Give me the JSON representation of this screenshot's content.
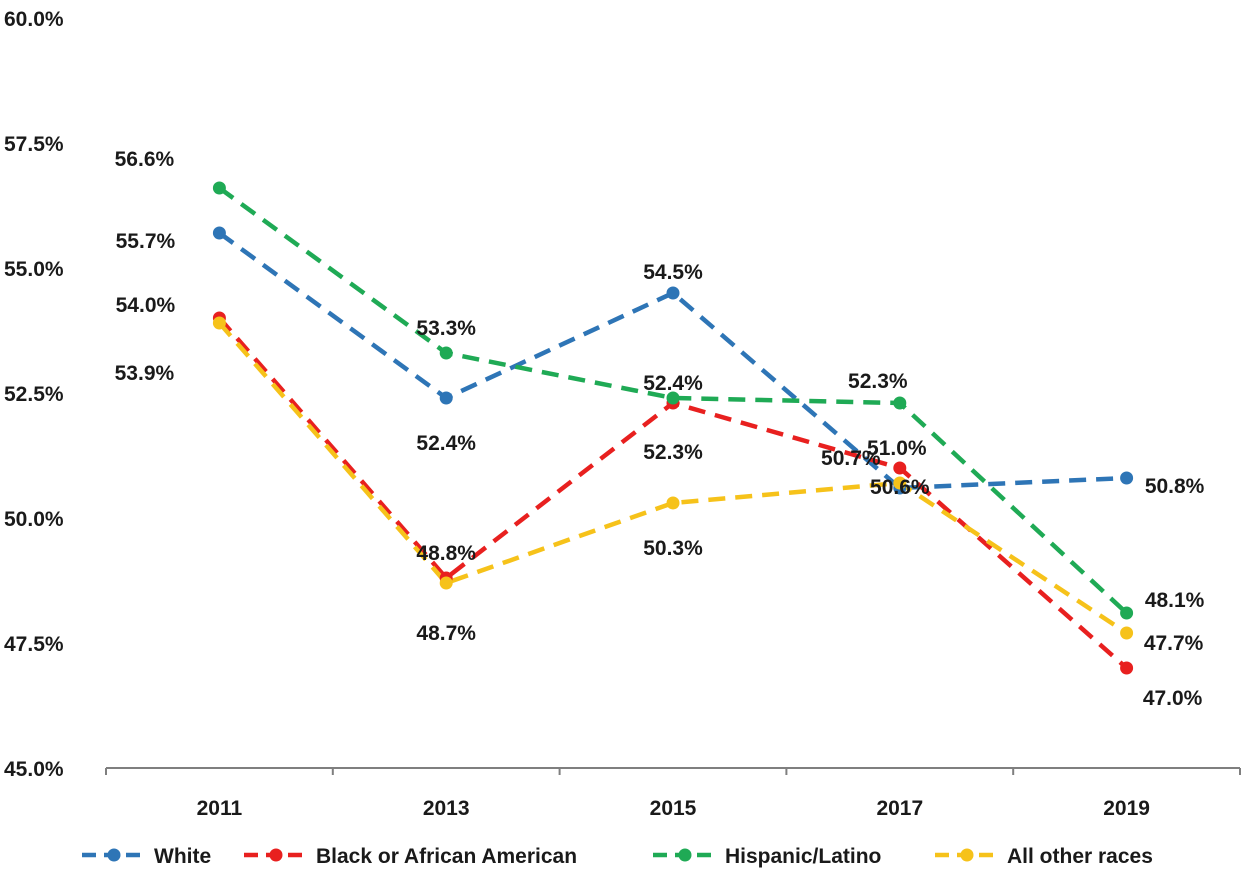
{
  "chart_data": {
    "type": "line",
    "title": "",
    "xlabel": "",
    "ylabel": "",
    "categories": [
      "2011",
      "2013",
      "2015",
      "2017",
      "2019"
    ],
    "ylim": [
      45.0,
      60.0
    ],
    "yticks": [
      45.0,
      47.5,
      50.0,
      52.5,
      55.0,
      57.5,
      60.0
    ],
    "ytick_labels": [
      "45.0%",
      "47.5%",
      "50.0%",
      "52.5%",
      "55.0%",
      "57.5%",
      "60.0%"
    ],
    "grid": false,
    "legend_position": "bottom",
    "series": [
      {
        "name": "White",
        "color": "#2E75B6",
        "values": [
          55.7,
          52.4,
          54.5,
          50.6,
          50.8
        ],
        "labels": [
          "55.7%",
          "52.4%",
          "54.5%",
          "50.6%",
          "50.8%"
        ]
      },
      {
        "name": "Black or African American",
        "color": "#E8201F",
        "values": [
          54.0,
          48.8,
          52.3,
          51.0,
          47.0
        ],
        "labels": [
          "54.0%",
          "48.8%",
          "52.3%",
          "51.0%",
          "47.0%"
        ]
      },
      {
        "name": "Hispanic/Latino",
        "color": "#1FAA55",
        "values": [
          56.6,
          53.3,
          52.4,
          52.3,
          48.1
        ],
        "labels": [
          "56.6%",
          "53.3%",
          "52.4%",
          "52.3%",
          "48.1%"
        ]
      },
      {
        "name": "All other races",
        "color": "#F6C21A",
        "values": [
          53.9,
          48.7,
          50.3,
          50.7,
          47.7
        ],
        "labels": [
          "53.9%",
          "48.7%",
          "50.3%",
          "50.7%",
          "47.7%"
        ]
      }
    ]
  }
}
